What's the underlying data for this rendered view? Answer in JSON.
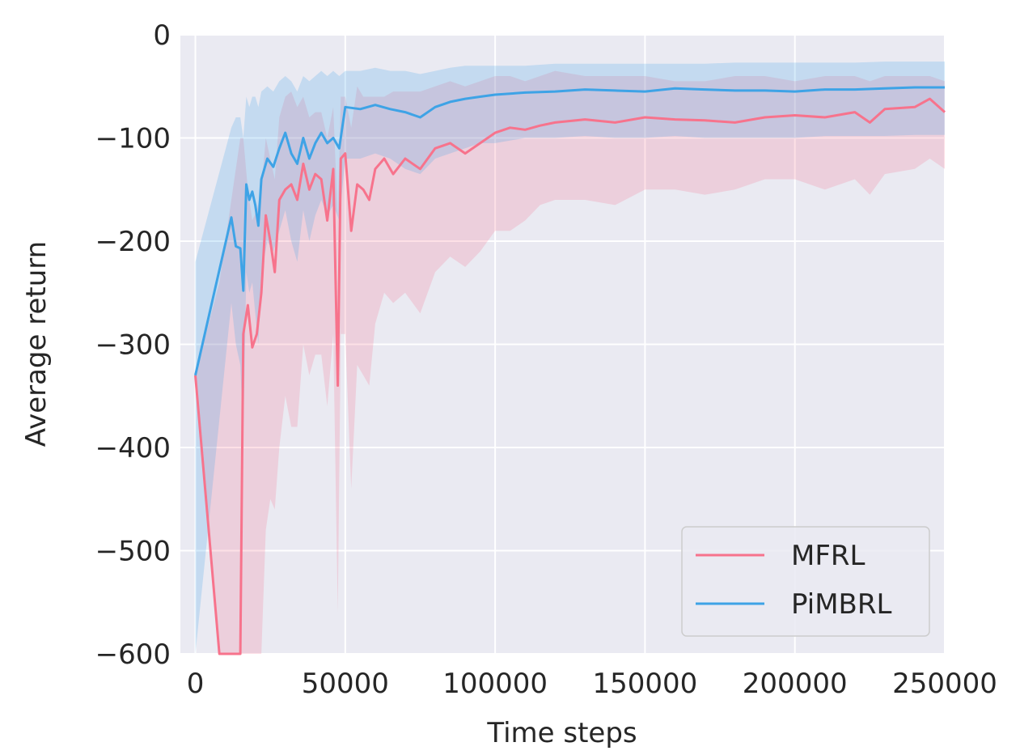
{
  "chart_data": {
    "type": "line",
    "title": "",
    "xlabel": "Time steps",
    "ylabel": "Average return",
    "xlim": [
      -5000,
      250000
    ],
    "ylim": [
      -600,
      0
    ],
    "xticks": [
      0,
      50000,
      100000,
      150000,
      200000,
      250000
    ],
    "xtick_labels": [
      "0",
      "50000",
      "100000",
      "150000",
      "200000",
      "250000"
    ],
    "yticks": [
      0,
      -100,
      -200,
      -300,
      -400,
      -500,
      -600
    ],
    "ytick_labels": [
      "0",
      "−100",
      "−200",
      "−300",
      "−400",
      "−500",
      "−600"
    ],
    "grid": true,
    "legend": "lower-right",
    "series": [
      {
        "name": "MFRL",
        "color": "#f7738c",
        "x": [
          0,
          8000,
          15000,
          16000,
          17500,
          19000,
          20500,
          22000,
          23500,
          25000,
          26500,
          28000,
          30000,
          32000,
          34000,
          36000,
          38000,
          40000,
          42000,
          44000,
          46000,
          47500,
          48500,
          50000,
          52000,
          54000,
          56000,
          58000,
          60000,
          63000,
          66000,
          70000,
          75000,
          80000,
          85000,
          90000,
          95000,
          100000,
          105000,
          110000,
          115000,
          120000,
          130000,
          140000,
          150000,
          160000,
          170000,
          180000,
          190000,
          200000,
          210000,
          220000,
          225000,
          230000,
          240000,
          245000,
          250000
        ],
        "y": [
          -330,
          -600,
          -600,
          -290,
          -262,
          -303,
          -290,
          -250,
          -175,
          -200,
          -230,
          -160,
          -150,
          -145,
          -160,
          -125,
          -150,
          -135,
          -140,
          -180,
          -130,
          -340,
          -120,
          -115,
          -190,
          -145,
          -150,
          -160,
          -130,
          -120,
          -135,
          -120,
          -130,
          -110,
          -105,
          -115,
          -105,
          -95,
          -90,
          -92,
          -88,
          -85,
          -82,
          -85,
          -80,
          -82,
          -83,
          -85,
          -80,
          -78,
          -80,
          -75,
          -85,
          -72,
          -70,
          -62,
          -75
        ],
        "band_upper": [
          -330,
          -240,
          -100,
          -100,
          -150,
          -180,
          -170,
          -150,
          -100,
          -120,
          -140,
          -80,
          -60,
          -55,
          -70,
          -60,
          -80,
          -75,
          -75,
          -100,
          -70,
          -180,
          -60,
          -60,
          -90,
          -50,
          -60,
          -60,
          -60,
          -60,
          -55,
          -55,
          -55,
          -50,
          -45,
          -50,
          -45,
          -40,
          -40,
          -45,
          -40,
          -35,
          -40,
          -40,
          -40,
          -45,
          -45,
          -40,
          -40,
          -45,
          -40,
          -40,
          -45,
          -40,
          -40,
          -40,
          -45
        ],
        "band_lower": [
          -330,
          -600,
          -600,
          -600,
          -600,
          -600,
          -600,
          -600,
          -480,
          -450,
          -460,
          -400,
          -350,
          -380,
          -380,
          -300,
          -330,
          -310,
          -310,
          -360,
          -290,
          -560,
          -290,
          -290,
          -440,
          -320,
          -330,
          -340,
          -280,
          -250,
          -260,
          -250,
          -270,
          -230,
          -215,
          -225,
          -210,
          -190,
          -190,
          -180,
          -165,
          -160,
          -160,
          -165,
          -150,
          -150,
          -155,
          -150,
          -140,
          -140,
          -150,
          -140,
          -155,
          -135,
          -130,
          -120,
          -130
        ]
      },
      {
        "name": "PiMBRL",
        "color": "#3ea3e6",
        "x": [
          0,
          12000,
          13500,
          15000,
          16000,
          17000,
          18000,
          19000,
          20000,
          21000,
          22000,
          24000,
          26000,
          28000,
          30000,
          32000,
          34000,
          36000,
          38000,
          40000,
          42000,
          44000,
          46000,
          48000,
          50000,
          55000,
          60000,
          65000,
          70000,
          75000,
          80000,
          85000,
          90000,
          95000,
          100000,
          110000,
          120000,
          130000,
          140000,
          150000,
          160000,
          170000,
          180000,
          190000,
          200000,
          210000,
          220000,
          230000,
          240000,
          250000
        ],
        "y": [
          -330,
          -177,
          -205,
          -207,
          -248,
          -145,
          -160,
          -152,
          -165,
          -185,
          -140,
          -120,
          -128,
          -110,
          -95,
          -115,
          -125,
          -100,
          -120,
          -105,
          -95,
          -105,
          -100,
          -110,
          -70,
          -72,
          -68,
          -72,
          -75,
          -80,
          -70,
          -65,
          -62,
          -60,
          -58,
          -56,
          -55,
          -53,
          -54,
          -55,
          -52,
          -53,
          -54,
          -54,
          -55,
          -53,
          -53,
          -52,
          -51,
          -51
        ],
        "band_upper": [
          -220,
          -90,
          -80,
          -80,
          -100,
          -60,
          -70,
          -60,
          -60,
          -70,
          -55,
          -50,
          -55,
          -45,
          -40,
          -45,
          -55,
          -40,
          -45,
          -40,
          -35,
          -40,
          -35,
          -40,
          -35,
          -35,
          -32,
          -35,
          -35,
          -38,
          -35,
          -32,
          -30,
          -30,
          -30,
          -30,
          -28,
          -28,
          -28,
          -28,
          -28,
          -28,
          -27,
          -27,
          -27,
          -27,
          -27,
          -26,
          -26,
          -26
        ],
        "band_lower": [
          -600,
          -260,
          -300,
          -320,
          -390,
          -230,
          -250,
          -240,
          -270,
          -300,
          -230,
          -200,
          -210,
          -190,
          -170,
          -200,
          -220,
          -170,
          -200,
          -175,
          -160,
          -175,
          -165,
          -180,
          -120,
          -120,
          -115,
          -120,
          -130,
          -135,
          -120,
          -115,
          -110,
          -105,
          -105,
          -100,
          -100,
          -98,
          -100,
          -100,
          -98,
          -100,
          -100,
          -100,
          -100,
          -98,
          -98,
          -98,
          -97,
          -97
        ]
      }
    ]
  }
}
